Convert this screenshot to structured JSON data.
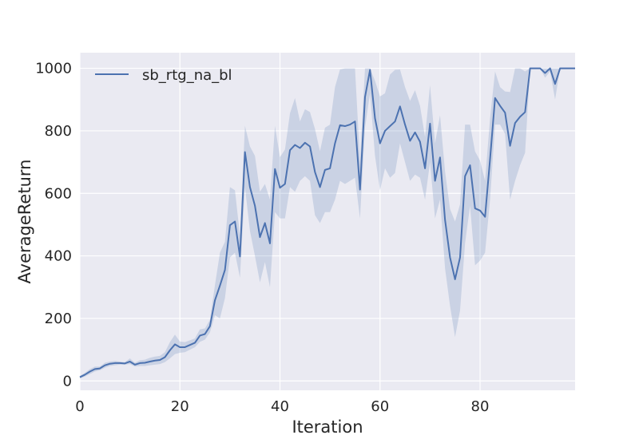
{
  "chart_data": {
    "type": "line",
    "title": "",
    "xlabel": "Iteration",
    "ylabel": "AverageReturn",
    "xlim": [
      0,
      99
    ],
    "ylim": [
      -30,
      1050
    ],
    "xticks": [
      0,
      20,
      40,
      60,
      80
    ],
    "yticks": [
      0,
      200,
      400,
      600,
      800,
      1000
    ],
    "grid": true,
    "legend": {
      "placement": "top-left"
    },
    "colors": {
      "line": "#4c72b0",
      "band": "#4c72b0",
      "background": "#eaeaf2",
      "grid": "#ffffff"
    },
    "series": [
      {
        "name": "sb_rtg_na_bl",
        "x": [
          0,
          1,
          2,
          3,
          4,
          5,
          6,
          7,
          8,
          9,
          10,
          11,
          12,
          13,
          14,
          15,
          16,
          17,
          18,
          19,
          20,
          21,
          22,
          23,
          24,
          25,
          26,
          27,
          28,
          29,
          30,
          31,
          32,
          33,
          34,
          35,
          36,
          37,
          38,
          39,
          40,
          41,
          42,
          43,
          44,
          45,
          46,
          47,
          48,
          49,
          50,
          51,
          52,
          53,
          54,
          55,
          56,
          57,
          58,
          59,
          60,
          61,
          62,
          63,
          64,
          65,
          66,
          67,
          68,
          69,
          70,
          71,
          72,
          73,
          74,
          75,
          76,
          77,
          78,
          79,
          80,
          81,
          82,
          83,
          84,
          85,
          86,
          87,
          88,
          89,
          90,
          91,
          92,
          93,
          94,
          95,
          96,
          97,
          98,
          99
        ],
        "y": [
          12,
          20,
          30,
          38,
          40,
          50,
          55,
          57,
          57,
          56,
          62,
          52,
          57,
          58,
          62,
          65,
          67,
          76,
          98,
          117,
          108,
          108,
          115,
          122,
          145,
          150,
          175,
          258,
          305,
          355,
          498,
          510,
          398,
          732,
          620,
          560,
          460,
          505,
          440,
          678,
          618,
          630,
          738,
          755,
          745,
          762,
          750,
          668,
          620,
          675,
          680,
          760,
          818,
          815,
          820,
          830,
          612,
          908,
          995,
          840,
          760,
          800,
          815,
          830,
          878,
          820,
          768,
          795,
          765,
          680,
          823,
          640,
          715,
          515,
          395,
          325,
          395,
          655,
          690,
          552,
          545,
          525,
          710,
          905,
          880,
          858,
          752,
          825,
          845,
          860,
          1000,
          1000,
          1000,
          985,
          1000,
          950,
          1000,
          1000,
          1000,
          1000
        ],
        "y_lower": [
          8,
          14,
          22,
          30,
          34,
          42,
          48,
          50,
          52,
          52,
          54,
          46,
          48,
          48,
          50,
          52,
          54,
          60,
          72,
          86,
          90,
          92,
          100,
          108,
          125,
          132,
          155,
          210,
          200,
          265,
          395,
          410,
          330,
          620,
          480,
          400,
          315,
          380,
          300,
          540,
          520,
          520,
          620,
          605,
          640,
          655,
          640,
          530,
          505,
          540,
          540,
          580,
          640,
          630,
          640,
          650,
          520,
          810,
          920,
          720,
          610,
          680,
          650,
          665,
          760,
          700,
          640,
          660,
          650,
          580,
          700,
          520,
          580,
          360,
          240,
          140,
          225,
          440,
          560,
          370,
          385,
          410,
          580,
          820,
          820,
          790,
          580,
          640,
          690,
          730,
          1000,
          1000,
          1000,
          970,
          990,
          900,
          1000,
          1000,
          1000,
          1000
        ],
        "y_upper": [
          16,
          26,
          38,
          46,
          46,
          58,
          62,
          64,
          62,
          60,
          72,
          58,
          66,
          68,
          74,
          78,
          80,
          92,
          124,
          148,
          126,
          124,
          130,
          136,
          165,
          168,
          195,
          306,
          410,
          445,
          620,
          610,
          466,
          816,
          750,
          720,
          605,
          630,
          580,
          816,
          716,
          740,
          856,
          905,
          830,
          869,
          860,
          806,
          735,
          810,
          820,
          940,
          996,
          1000,
          1000,
          1000,
          704,
          1000,
          1000,
          960,
          910,
          920,
          980,
          995,
          996,
          940,
          896,
          930,
          880,
          780,
          946,
          760,
          850,
          670,
          550,
          510,
          565,
          820,
          820,
          734,
          705,
          640,
          840,
          990,
          940,
          926,
          924,
          1000,
          1000,
          990,
          1000,
          1000,
          1000,
          1000,
          1000,
          1000,
          1000,
          1000,
          1000,
          1000
        ]
      }
    ]
  }
}
